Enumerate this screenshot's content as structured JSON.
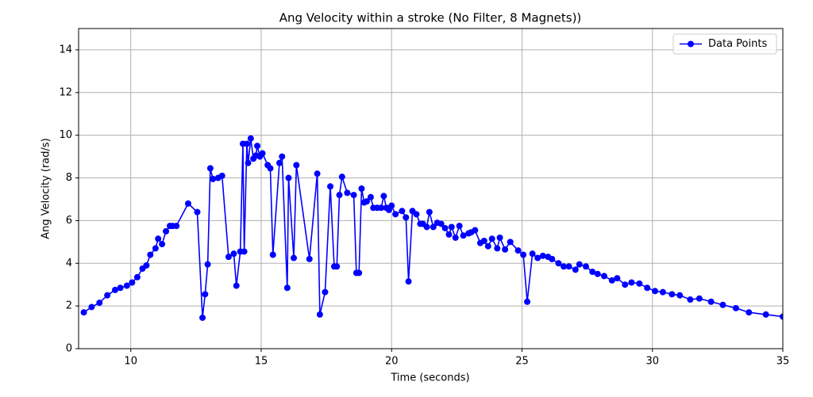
{
  "chart_data": {
    "type": "line",
    "title": "Ang Velocity within a stroke (No Filter, 8 Magnets))",
    "xlabel": "Time (seconds)",
    "ylabel": "Ang Velocity (rad/s)",
    "x": [
      8.2,
      8.5,
      8.8,
      9.1,
      9.4,
      9.6,
      9.85,
      10.05,
      10.25,
      10.45,
      10.6,
      10.75,
      10.95,
      11.05,
      11.2,
      11.35,
      11.5,
      11.6,
      11.75,
      12.2,
      12.55,
      12.75,
      12.85,
      12.95,
      13.05,
      13.15,
      13.35,
      13.5,
      13.75,
      13.95,
      14.05,
      14.2,
      14.3,
      14.35,
      14.45,
      14.5,
      14.6,
      14.7,
      14.8,
      14.85,
      14.95,
      15.05,
      15.25,
      15.35,
      15.45,
      15.7,
      15.8,
      16.0,
      16.05,
      16.25,
      16.35,
      16.85,
      17.15,
      17.25,
      17.45,
      17.65,
      17.8,
      17.9,
      18.0,
      18.1,
      18.3,
      18.55,
      18.65,
      18.75,
      18.85,
      18.95,
      19.05,
      19.2,
      19.3,
      19.45,
      19.6,
      19.7,
      19.8,
      19.9,
      20.0,
      20.15,
      20.4,
      20.55,
      20.65,
      20.8,
      20.95,
      21.1,
      21.2,
      21.35,
      21.45,
      21.6,
      21.75,
      21.9,
      22.05,
      22.2,
      22.3,
      22.45,
      22.6,
      22.75,
      22.95,
      23.05,
      23.2,
      23.4,
      23.55,
      23.7,
      23.85,
      24.05,
      24.15,
      24.35,
      24.55,
      24.85,
      25.05,
      25.2,
      25.4,
      25.6,
      25.8,
      26.0,
      26.15,
      26.4,
      26.6,
      26.8,
      27.05,
      27.2,
      27.45,
      27.7,
      27.9,
      28.15,
      28.45,
      28.65,
      28.95,
      29.2,
      29.5,
      29.8,
      30.1,
      30.4,
      30.75,
      31.05,
      31.45,
      31.8,
      32.25,
      32.7,
      33.2,
      33.7,
      34.35,
      35.0
    ],
    "series": [
      {
        "name": "Data Points",
        "color": "#0000ff",
        "values": [
          1.7,
          1.95,
          2.15,
          2.5,
          2.75,
          2.85,
          2.95,
          3.1,
          3.35,
          3.75,
          3.9,
          4.4,
          4.7,
          5.15,
          4.9,
          5.5,
          5.75,
          5.75,
          5.75,
          6.8,
          6.4,
          1.45,
          2.55,
          3.95,
          8.45,
          7.95,
          8.0,
          8.1,
          4.3,
          4.45,
          2.95,
          4.55,
          9.6,
          4.55,
          9.6,
          8.7,
          9.85,
          8.9,
          9.05,
          9.5,
          9.0,
          9.15,
          8.6,
          8.45,
          4.4,
          8.7,
          9.0,
          2.85,
          8.0,
          4.25,
          8.6,
          4.2,
          8.2,
          1.6,
          2.65,
          7.6,
          3.85,
          3.85,
          7.2,
          8.05,
          7.3,
          7.2,
          3.55,
          3.55,
          7.5,
          6.85,
          6.9,
          7.1,
          6.6,
          6.6,
          6.6,
          7.15,
          6.6,
          6.5,
          6.7,
          6.3,
          6.45,
          6.15,
          3.15,
          6.45,
          6.3,
          5.85,
          5.85,
          5.7,
          6.4,
          5.7,
          5.9,
          5.85,
          5.65,
          5.35,
          5.7,
          5.2,
          5.75,
          5.3,
          5.4,
          5.45,
          5.55,
          4.95,
          5.05,
          4.8,
          5.15,
          4.7,
          5.2,
          4.65,
          5.0,
          4.6,
          4.4,
          2.2,
          4.45,
          4.25,
          4.35,
          4.3,
          4.2,
          4.0,
          3.85,
          3.85,
          3.7,
          3.95,
          3.85,
          3.6,
          3.5,
          3.4,
          3.2,
          3.3,
          3.0,
          3.1,
          3.05,
          2.85,
          2.7,
          2.65,
          2.55,
          2.5,
          2.3,
          2.35,
          2.2,
          2.05,
          1.9,
          1.7,
          1.6,
          1.5
        ]
      }
    ],
    "xlim": [
      8,
      35
    ],
    "xticks": [
      10,
      15,
      20,
      25,
      30,
      35
    ],
    "ylim": [
      0,
      15
    ],
    "yticks": [
      0,
      2,
      4,
      6,
      8,
      10,
      12,
      14
    ],
    "grid": true,
    "legend": "upper right"
  }
}
